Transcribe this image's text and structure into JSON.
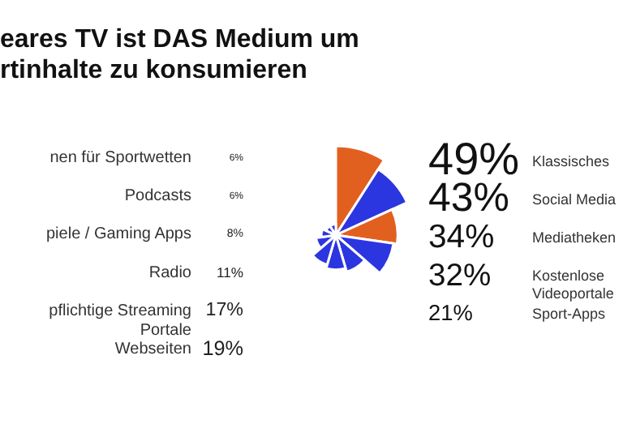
{
  "chart_data": {
    "type": "other",
    "title": "eares TV ist DAS Medium um\nrtinhalte zu konsumieren",
    "categories": [
      "Klassisches",
      "Social Media",
      "Mediatheken",
      "Kostenlose\nVideoportale",
      "Sport-Apps",
      "Webseiten",
      "pflichtige Streaming\nPortale",
      "Radio",
      "piele / Gaming Apps",
      "Podcasts",
      "nen für Sportwetten"
    ],
    "values": [
      49,
      43,
      34,
      32,
      21,
      19,
      17,
      11,
      8,
      6,
      6
    ],
    "value_labels": [
      "49%",
      "43%",
      "34%",
      "32%",
      "21%",
      "19%",
      "17%",
      "11%",
      "8%",
      "6%",
      "6%"
    ],
    "colors": [
      "#e2601f",
      "#2b36e0",
      "#e2601f",
      "#2b36e0",
      "#2b36e0",
      "#2b36e0",
      "#2b36e0",
      "#2b36e0",
      "#2b36e0",
      "#2b36e0",
      "#2b36e0"
    ]
  }
}
